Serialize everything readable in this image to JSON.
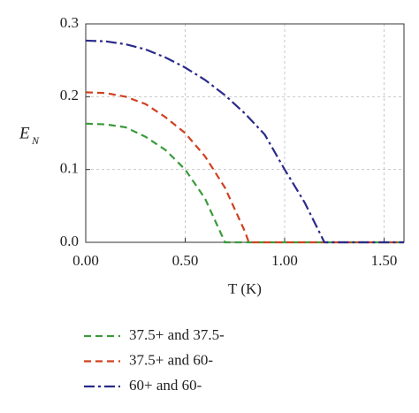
{
  "chart_data": {
    "type": "line",
    "xlabel": "T (K)",
    "ylabel": "E",
    "ylabel_subscript": "N",
    "xlim": [
      0,
      1.6
    ],
    "ylim": [
      0,
      0.3
    ],
    "xticks": [
      {
        "value": 0,
        "label": "0.00"
      },
      {
        "value": 0.5,
        "label": "0.50"
      },
      {
        "value": 1,
        "label": "1.00"
      },
      {
        "value": 1.5,
        "label": "1.50"
      }
    ],
    "yticks": [
      {
        "value": 0,
        "label": "0.0"
      },
      0.1,
      0.2,
      0.3
    ],
    "grid": true,
    "legend": "below",
    "series": [
      {
        "name": "37.5+ and 37.5-",
        "color": "#3a9a3a",
        "dash": "dashed",
        "x": [
          0,
          0.1,
          0.2,
          0.3,
          0.4,
          0.5,
          0.6,
          0.7,
          1.6
        ],
        "values": [
          0.163,
          0.162,
          0.158,
          0.145,
          0.127,
          0.1,
          0.06,
          0,
          0
        ]
      },
      {
        "name": "37.5+ and 60-",
        "color": "#d04020",
        "dash": "dashed",
        "x": [
          0,
          0.1,
          0.2,
          0.3,
          0.4,
          0.5,
          0.6,
          0.7,
          0.8,
          0.82,
          1.6
        ],
        "values": [
          0.206,
          0.205,
          0.2,
          0.19,
          0.172,
          0.15,
          0.118,
          0.075,
          0.015,
          0,
          0
        ]
      },
      {
        "name": "60+ and 60-",
        "color": "#2a2a8a",
        "dash": "dashdot",
        "x": [
          0,
          0.1,
          0.2,
          0.3,
          0.4,
          0.5,
          0.6,
          0.7,
          0.8,
          0.9,
          1.0,
          1.1,
          1.2,
          1.6
        ],
        "values": [
          0.277,
          0.276,
          0.272,
          0.265,
          0.254,
          0.24,
          0.223,
          0.202,
          0.177,
          0.148,
          0.1,
          0.055,
          0,
          0
        ]
      }
    ]
  }
}
